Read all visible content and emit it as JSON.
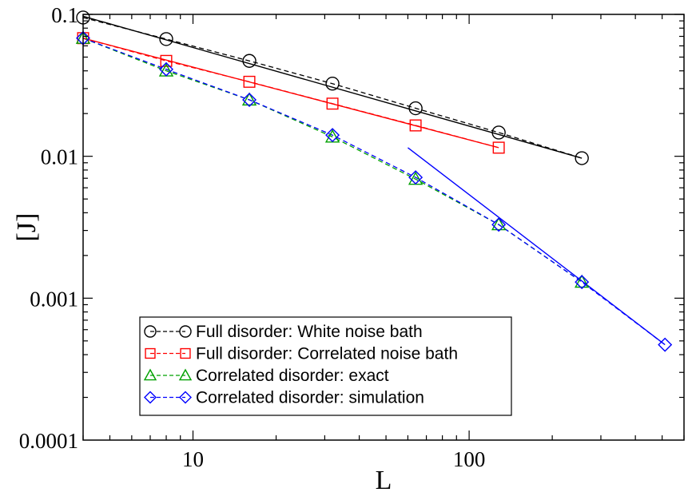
{
  "chart_data": {
    "type": "line",
    "title": "",
    "xlabel": "L",
    "ylabel": "[J]",
    "xscale": "log",
    "yscale": "log",
    "xlim": [
      4,
      600
    ],
    "ylim": [
      0.0001,
      0.1
    ],
    "x_tick_labels": [
      {
        "value": 10,
        "label": "10"
      },
      {
        "value": 100,
        "label": "100"
      }
    ],
    "y_tick_labels": [
      {
        "value": 0.1,
        "label": "0.1"
      },
      {
        "value": 0.01,
        "label": "0.01"
      },
      {
        "value": 0.001,
        "label": "0.001"
      },
      {
        "value": 0.0001,
        "label": "0.0001"
      }
    ],
    "grid": false,
    "legend_position": "bottom-left",
    "series": [
      {
        "name": "Full disorder: White noise bath",
        "color": "#000000",
        "marker": "circle",
        "x": [
          4,
          8,
          16,
          32,
          64,
          128,
          256
        ],
        "y": [
          0.095,
          0.067,
          0.047,
          0.0325,
          0.0218,
          0.0147,
          0.0097
        ]
      },
      {
        "name": "Full disorder: Correlated  noise bath",
        "color": "#ff0000",
        "marker": "square",
        "x": [
          4,
          8,
          16,
          32,
          64,
          128
        ],
        "y": [
          0.068,
          0.047,
          0.0335,
          0.0235,
          0.0165,
          0.0115
        ]
      },
      {
        "name": "Correlated disorder: exact",
        "color": "#00a000",
        "marker": "triangle",
        "x": [
          4,
          8,
          16,
          32,
          64,
          128,
          256
        ],
        "y": [
          0.068,
          0.04,
          0.025,
          0.0137,
          0.0069,
          0.0033,
          0.0013
        ]
      },
      {
        "name": "Correlated disorder: simulation",
        "color": "#0000ff",
        "marker": "diamond",
        "x": [
          4,
          8,
          16,
          32,
          64,
          128,
          256,
          512
        ],
        "y": [
          0.068,
          0.041,
          0.025,
          0.0141,
          0.0071,
          0.0033,
          0.0013,
          0.00047
        ]
      }
    ],
    "fit_lines": [
      {
        "color": "#000000",
        "x": [
          4,
          256
        ],
        "y": [
          0.097,
          0.0097
        ]
      },
      {
        "color": "#ff0000",
        "x": [
          4,
          128
        ],
        "y": [
          0.068,
          0.0115
        ]
      },
      {
        "color": "#0000ff",
        "x": [
          60,
          512
        ],
        "y": [
          0.0115,
          0.00047
        ]
      }
    ]
  }
}
